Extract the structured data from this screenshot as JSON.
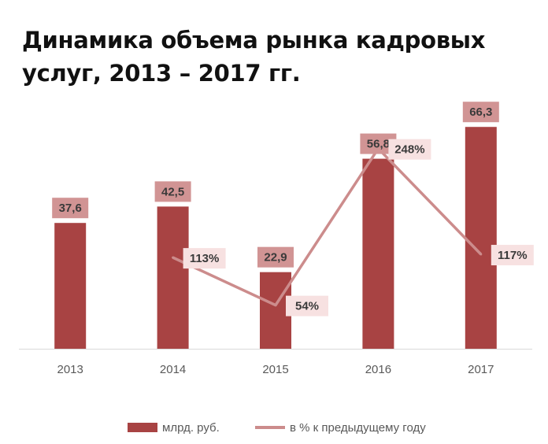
{
  "title_line1": "Динамика объема рынка кадровых",
  "title_line2": "услуг, 2013 – 2017 гг.",
  "colors": {
    "bar": "#a84343",
    "line": "#cc8c8c",
    "bar_label_bg": "#d19494",
    "line_label_bg": "#f7e1e1",
    "label_text": "#3a3a3a",
    "axis_text": "#595959",
    "axis_line": "#d9d9d9"
  },
  "chart_data": {
    "type": "bar",
    "categories": [
      "2013",
      "2014",
      "2015",
      "2016",
      "2017"
    ],
    "ylim": [
      0,
      76
    ],
    "grid": false,
    "legend_position": "bottom",
    "series": [
      {
        "name": "млрд. руб.",
        "type": "bar",
        "values": [
          37.6,
          42.5,
          22.9,
          56.8,
          66.3
        ],
        "labels": [
          "37,6",
          "42,5",
          "22,9",
          "56,8",
          "66,3"
        ]
      },
      {
        "name": "в % к предыдущему году",
        "type": "line",
        "secondary_axis": true,
        "values": [
          null,
          113,
          54,
          248,
          117
        ],
        "labels": [
          "",
          "113%",
          "54%",
          "248%",
          "117%"
        ]
      }
    ],
    "secondary_ylim": [
      0,
      315
    ]
  }
}
